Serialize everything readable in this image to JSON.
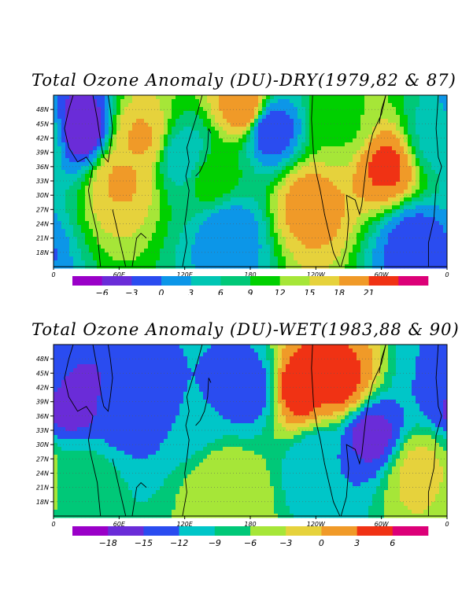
{
  "chart_data": [
    {
      "type": "heatmap",
      "title": "Total Ozone Anomaly (DU)-DRY(1979,82 & 87)",
      "x_tick_labels": [
        "0",
        "60E",
        "120E",
        "180",
        "120W",
        "60W",
        "0"
      ],
      "y_tick_labels": [
        "18N",
        "21N",
        "24N",
        "27N",
        "30N",
        "33N",
        "36N",
        "39N",
        "42N",
        "45N",
        "48N"
      ],
      "xlim": [
        0,
        360
      ],
      "ylim": [
        15,
        51
      ],
      "colorbar": {
        "levels": [
          "-6",
          "-3",
          "0",
          "3",
          "6",
          "9",
          "12",
          "15",
          "18",
          "21"
        ],
        "colors": [
          "#9a00c8",
          "#6a2cd8",
          "#2a4cf0",
          "#0c96e8",
          "#00c6b4",
          "#00c878",
          "#00d000",
          "#a6e638",
          "#e6d23c",
          "#f09a28",
          "#f03214",
          "#dc0078"
        ]
      },
      "anomalies": [
        {
          "lon": 25,
          "lat": 44,
          "value": -6
        },
        {
          "lon": 80,
          "lat": 42,
          "value": 16
        },
        {
          "lon": 62,
          "lat": 33,
          "value": 16
        },
        {
          "lon": 120,
          "lat": 38,
          "value": 3
        },
        {
          "lon": 145,
          "lat": 34,
          "value": 9
        },
        {
          "lon": 160,
          "lat": 22,
          "value": 0
        },
        {
          "lon": 175,
          "lat": 48,
          "value": 18
        },
        {
          "lon": 197,
          "lat": 44,
          "value": -3
        },
        {
          "lon": 235,
          "lat": 28,
          "value": 17
        },
        {
          "lon": 265,
          "lat": 45,
          "value": 10
        },
        {
          "lon": 305,
          "lat": 36,
          "value": 19
        },
        {
          "lon": 330,
          "lat": 20,
          "value": -2
        },
        {
          "lon": 350,
          "lat": 42,
          "value": 4
        }
      ]
    },
    {
      "type": "heatmap",
      "title": "Total Ozone Anomaly (DU)-WET(1983,88 & 90)",
      "x_tick_labels": [
        "0",
        "60E",
        "120E",
        "180",
        "120W",
        "60W",
        "0"
      ],
      "y_tick_labels": [
        "18N",
        "21N",
        "24N",
        "27N",
        "30N",
        "33N",
        "36N",
        "39N",
        "42N",
        "45N",
        "48N"
      ],
      "xlim": [
        0,
        360
      ],
      "ylim": [
        15,
        51
      ],
      "colorbar": {
        "levels": [
          "-18",
          "-15",
          "-12",
          "-9",
          "-6",
          "-3",
          "0",
          "3",
          "6"
        ],
        "colors": [
          "#9a00c8",
          "#6a2cd8",
          "#2a4cf0",
          "#00c6c8",
          "#00c878",
          "#a6e638",
          "#e6d23c",
          "#f09a28",
          "#f03214",
          "#dc0078"
        ]
      },
      "anomalies": [
        {
          "lon": 15,
          "lat": 40,
          "value": -17
        },
        {
          "lon": 65,
          "lat": 38,
          "value": -14
        },
        {
          "lon": 30,
          "lat": 22,
          "value": -8
        },
        {
          "lon": 120,
          "lat": 38,
          "value": -12
        },
        {
          "lon": 180,
          "lat": 42,
          "value": -14
        },
        {
          "lon": 160,
          "lat": 20,
          "value": -3
        },
        {
          "lon": 225,
          "lat": 42,
          "value": 5
        },
        {
          "lon": 262,
          "lat": 43,
          "value": 4
        },
        {
          "lon": 245,
          "lat": 26,
          "value": -12
        },
        {
          "lon": 290,
          "lat": 32,
          "value": -16
        },
        {
          "lon": 335,
          "lat": 24,
          "value": -2
        },
        {
          "lon": 355,
          "lat": 45,
          "value": -12
        }
      ]
    }
  ]
}
